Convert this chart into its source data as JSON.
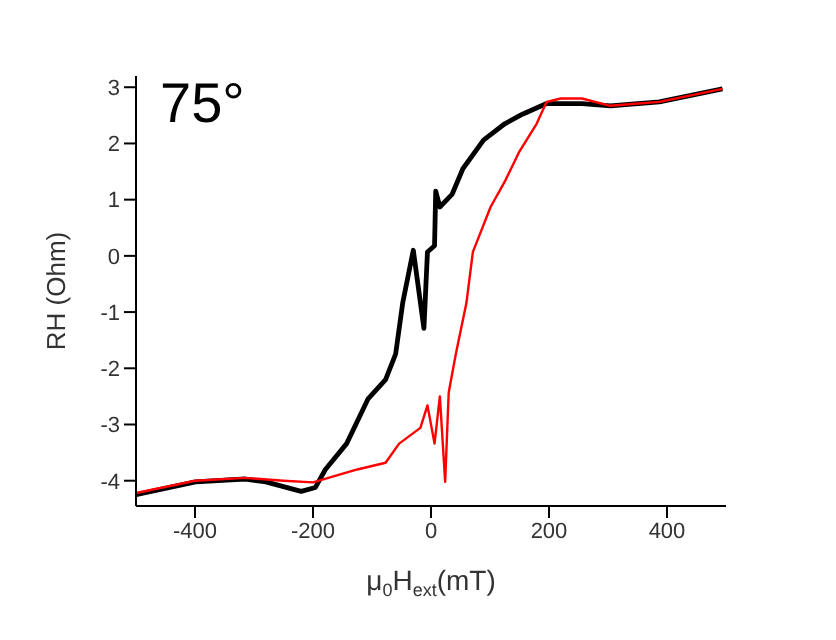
{
  "chart_data": {
    "type": "line",
    "xlabel": "μ$_{0}$H$_{ext}$(mT)",
    "ylabel": "RH (Ohm)",
    "annotations": [
      "75°"
    ],
    "xlim": [
      -500,
      500
    ],
    "xticks": [
      -400,
      -200,
      0,
      200,
      400
    ],
    "ylim": [
      -4.45,
      3.2
    ],
    "yticks": [
      -4,
      -3,
      -2,
      -1,
      0,
      1,
      2,
      3
    ],
    "grid": false,
    "marker": "none",
    "line_style": "solid",
    "series": [
      {
        "color": "#000000",
        "x": [
          -500,
          -399,
          -315,
          -280,
          -220,
          -196,
          -179,
          -143,
          -107,
          -77,
          -60,
          -48,
          -30,
          -12,
          -6,
          6,
          8,
          15,
          36,
          54,
          89,
          125,
          155,
          196,
          256,
          304,
          387,
          494
        ],
        "values": [
          -4.25,
          -4.02,
          -3.97,
          -4.02,
          -4.19,
          -4.12,
          -3.8,
          -3.34,
          -2.55,
          -2.2,
          -1.75,
          -0.84,
          0.1,
          -1.29,
          0.07,
          0.18,
          1.15,
          0.87,
          1.1,
          1.55,
          2.06,
          2.35,
          2.52,
          2.71,
          2.71,
          2.67,
          2.74,
          2.97
        ]
      },
      {
        "color": "#ff0000",
        "x": [
          -500,
          -400,
          -315,
          -250,
          -200,
          -125,
          -77,
          -54,
          -18,
          -6,
          6,
          15,
          24,
          30,
          42,
          60,
          71,
          101,
          125,
          149,
          179,
          196,
          220,
          256,
          304,
          387,
          494
        ],
        "values": [
          -4.22,
          -4.0,
          -3.95,
          -4.0,
          -4.03,
          -3.8,
          -3.68,
          -3.34,
          -3.06,
          -2.66,
          -3.34,
          -2.5,
          -4.02,
          -2.43,
          -1.75,
          -0.84,
          0.07,
          0.87,
          1.32,
          1.84,
          2.35,
          2.74,
          2.8,
          2.8,
          2.67,
          2.74,
          2.97
        ]
      }
    ]
  }
}
